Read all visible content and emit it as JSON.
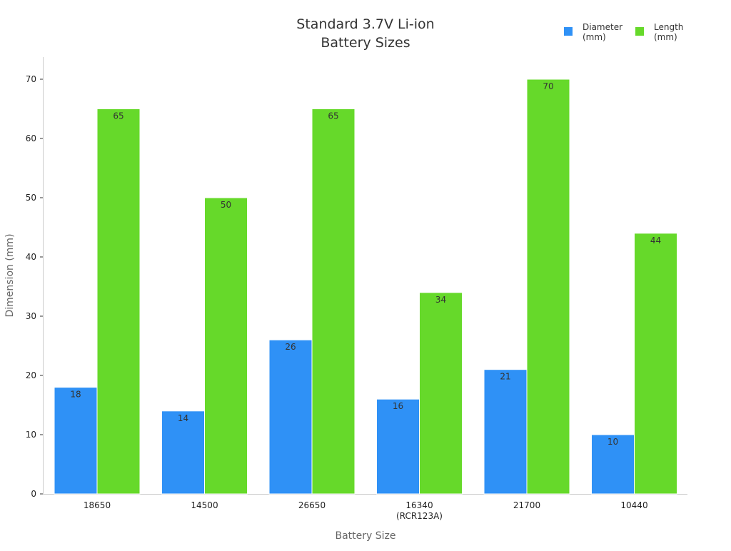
{
  "chart_data": {
    "type": "bar",
    "title_lines": [
      "Standard 3.7V Li-ion",
      "Battery Sizes"
    ],
    "xlabel": "Battery Size",
    "ylabel": "Dimension (mm)",
    "categories": [
      [
        "18650"
      ],
      [
        "14500"
      ],
      [
        "26650"
      ],
      [
        "16340",
        "(RCR123A)"
      ],
      [
        "21700"
      ],
      [
        "10440"
      ]
    ],
    "series": [
      {
        "name_lines": [
          "Diameter",
          "(mm)"
        ],
        "color": "#2f91f6",
        "values": [
          18,
          14,
          26,
          16,
          21,
          10
        ]
      },
      {
        "name_lines": [
          "Length",
          "(mm)"
        ],
        "color": "#66d92a",
        "values": [
          65,
          50,
          65,
          34,
          70,
          44
        ]
      }
    ],
    "yticks": [
      "0",
      "10",
      "20",
      "30",
      "40",
      "50",
      "60",
      "70"
    ],
    "ylim": [
      0,
      70
    ],
    "grid": false,
    "legend_position": "top-right",
    "data_labels": true
  }
}
